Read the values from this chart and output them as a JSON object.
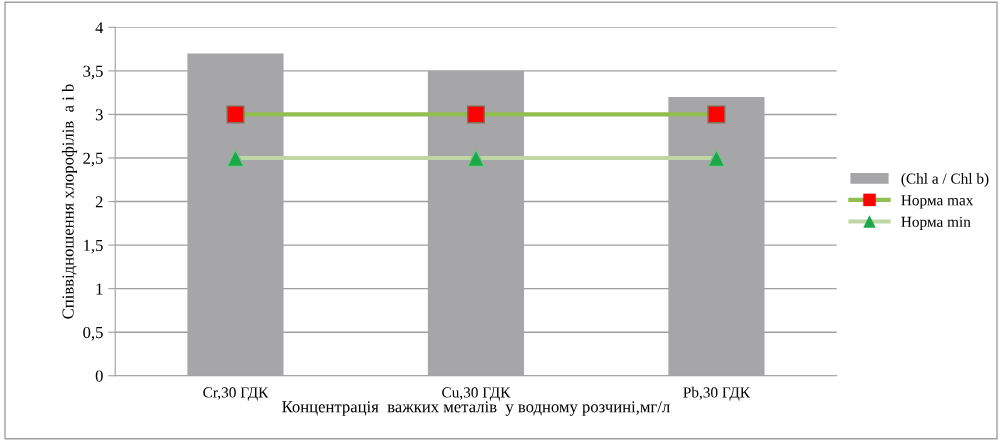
{
  "chart_data": {
    "type": "bar",
    "xlabel": "Концентрація  важких металів  у водному розчині,мг/л",
    "ylabel": "Співвідношення хлорофілів  a i b",
    "categories": [
      "Cr,30 ГДК",
      "Cu,30 ГДК",
      "Pb,30 ГДК"
    ],
    "series": [
      {
        "name": "(Chl a / Chl b)",
        "color": "#a6a6a9",
        "values": [
          3.7,
          3.5,
          3.2
        ]
      },
      {
        "name": "Норма max",
        "type": "line",
        "color": "#92bd50",
        "colors": [
          "#ff0000",
          "#ff0000",
          "#ff0000"
        ],
        "marker": "square",
        "values": [
          3,
          3,
          3
        ]
      },
      {
        "name": "Норма min",
        "type": "line",
        "color": "#c0d7a5",
        "colors": [
          "#1da84a",
          "#1da84a",
          "#1da84a"
        ],
        "marker": "triangle",
        "values": [
          2.5,
          2.5,
          2.5
        ]
      }
    ],
    "ylim": [
      0,
      4
    ],
    "yticks": [
      0,
      {
        "value": 0.5,
        "label": "0,5"
      },
      1,
      {
        "value": 1.5,
        "label": "1,5"
      },
      2,
      {
        "value": 2.5,
        "label": "2,5"
      },
      3,
      {
        "value": 3.5,
        "label": "3,5"
      },
      4
    ],
    "grid": "y",
    "legend": "right"
  }
}
